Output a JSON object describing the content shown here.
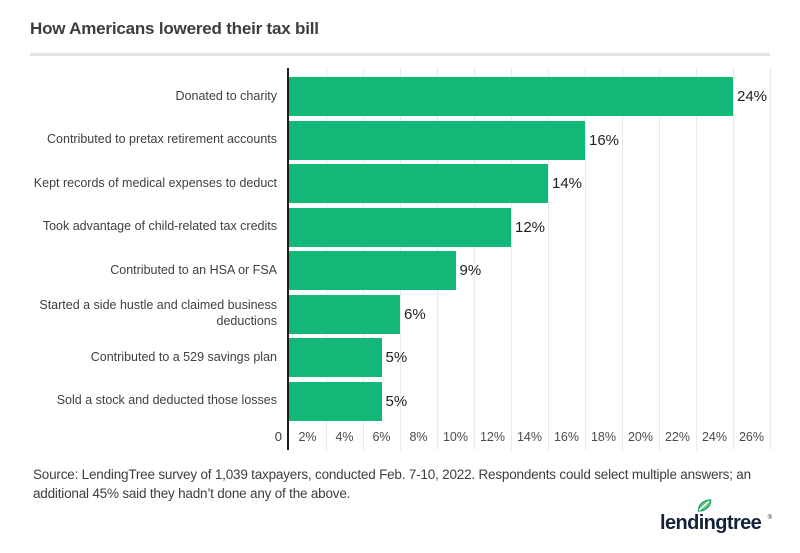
{
  "title": "How Americans lowered their tax bill",
  "chart_data": {
    "type": "bar",
    "orientation": "horizontal",
    "title": "How Americans lowered their tax bill",
    "categories": [
      "Donated to charity",
      "Contributed to pretax retirement accounts",
      "Kept records of medical expenses to deduct",
      "Took advantage of child-related tax credits",
      "Contributed to an HSA or FSA",
      "Started a side hustle and claimed business deductions",
      "Contributed to a 529 savings plan",
      "Sold a stock and deducted those losses"
    ],
    "values": [
      24,
      16,
      14,
      12,
      9,
      6,
      5,
      5
    ],
    "value_labels": [
      "24%",
      "16%",
      "14%",
      "12%",
      "9%",
      "6%",
      "5%",
      "5%"
    ],
    "xlim": [
      0,
      26
    ],
    "zero_label": "0",
    "x_ticks": [
      "2%",
      "4%",
      "6%",
      "8%",
      "10%",
      "12%",
      "14%",
      "16%",
      "18%",
      "20%",
      "22%",
      "24%",
      "26%"
    ],
    "grid": true,
    "legend": "none",
    "bar_color": "#12b878"
  },
  "source_note": "Source: LendingTree survey of 1,039 taxpayers, conducted Feb. 7-10, 2022. Respondents could select multiple answers; an additional 45% said they hadn’t done any of the above.",
  "logo": {
    "text": "lendingtree",
    "registered_mark": "®",
    "leaf_icon": "leaf-icon",
    "text_color": "#132239",
    "leaf_color": "#15a564"
  },
  "colors": {
    "bar_green": "#12b878",
    "axis_line": "#1c1c1c",
    "gridline": "#e9e9e9",
    "divider": "#e3e3e3",
    "title_text": "#3d3d3d"
  }
}
